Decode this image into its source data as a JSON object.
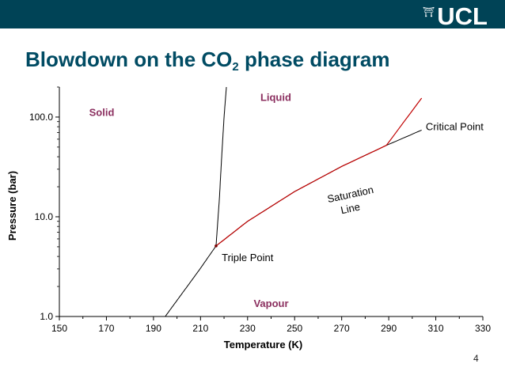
{
  "header": {
    "logo_text": "UCL",
    "logo_icon": "ucl-dome-icon",
    "bar_color": "#004356"
  },
  "slide": {
    "title_main": "Blowdown on the CO",
    "title_sub": "2",
    "title_tail": " phase diagram",
    "title_color": "#004b63",
    "page_number": "4"
  },
  "chart_data": {
    "type": "line",
    "xlabel": "Temperature (K)",
    "ylabel": "Pressure (bar)",
    "xlim": [
      150,
      330
    ],
    "ylim": [
      1,
      200
    ],
    "yscale": "log",
    "x_ticks": [
      "150",
      "170",
      "190",
      "210",
      "230",
      "250",
      "270",
      "290",
      "310",
      "330"
    ],
    "y_ticks": [
      {
        "value": 1,
        "label": "1.0"
      },
      {
        "value": 10,
        "label": "10.0"
      },
      {
        "value": 100,
        "label": "100.0"
      }
    ],
    "grid": false,
    "series": [
      {
        "key": "sublimation",
        "color": "#000000",
        "points": [
          [
            195,
            1.0
          ],
          [
            200,
            1.45
          ],
          [
            205,
            2.1
          ],
          [
            210,
            3.05
          ],
          [
            216.6,
            5.1
          ]
        ]
      },
      {
        "key": "melting",
        "color": "#000000",
        "points": [
          [
            216.6,
            5.1
          ],
          [
            218,
            15
          ],
          [
            219,
            40
          ],
          [
            220,
            100
          ],
          [
            221,
            200
          ]
        ]
      },
      {
        "key": "saturation_black",
        "color": "#000000",
        "points": [
          [
            216.6,
            5.1
          ],
          [
            230,
            9.0
          ],
          [
            250,
            17.9
          ],
          [
            270,
            32.0
          ],
          [
            289,
            52.0
          ],
          [
            304,
            74.0
          ]
        ]
      },
      {
        "key": "saturation_red",
        "color": "#c00000",
        "points": [
          [
            216.6,
            5.1
          ],
          [
            230,
            9.0
          ],
          [
            250,
            17.9
          ],
          [
            270,
            32.0
          ],
          [
            289,
            52.0
          ]
        ]
      },
      {
        "key": "blowdown_red",
        "color": "#c00000",
        "points": [
          [
            289,
            52.0
          ],
          [
            304,
            155
          ]
        ]
      }
    ],
    "annotations": [
      {
        "text": "Solid",
        "x": 168,
        "y": 103,
        "color": "#8b2f5f",
        "bold": true
      },
      {
        "text": "Liquid",
        "x": 242,
        "y": 145,
        "color": "#8b2f5f",
        "bold": true
      },
      {
        "text": "Vapour",
        "x": 240,
        "y": 1.25,
        "color": "#8b2f5f",
        "bold": true
      },
      {
        "text": "Critical Point",
        "x": 318,
        "y": 74,
        "color": "#000000",
        "bold": false
      },
      {
        "text": "Triple Point",
        "x": 230,
        "y": 3.6,
        "color": "#000000",
        "bold": false
      },
      {
        "text": "Saturation",
        "x": 274,
        "y": 15.5,
        "color": "#000000",
        "bold": false,
        "rotate": -12
      },
      {
        "text": "Line",
        "x": 274,
        "y": 11.2,
        "color": "#000000",
        "bold": false,
        "rotate": -12
      }
    ]
  }
}
